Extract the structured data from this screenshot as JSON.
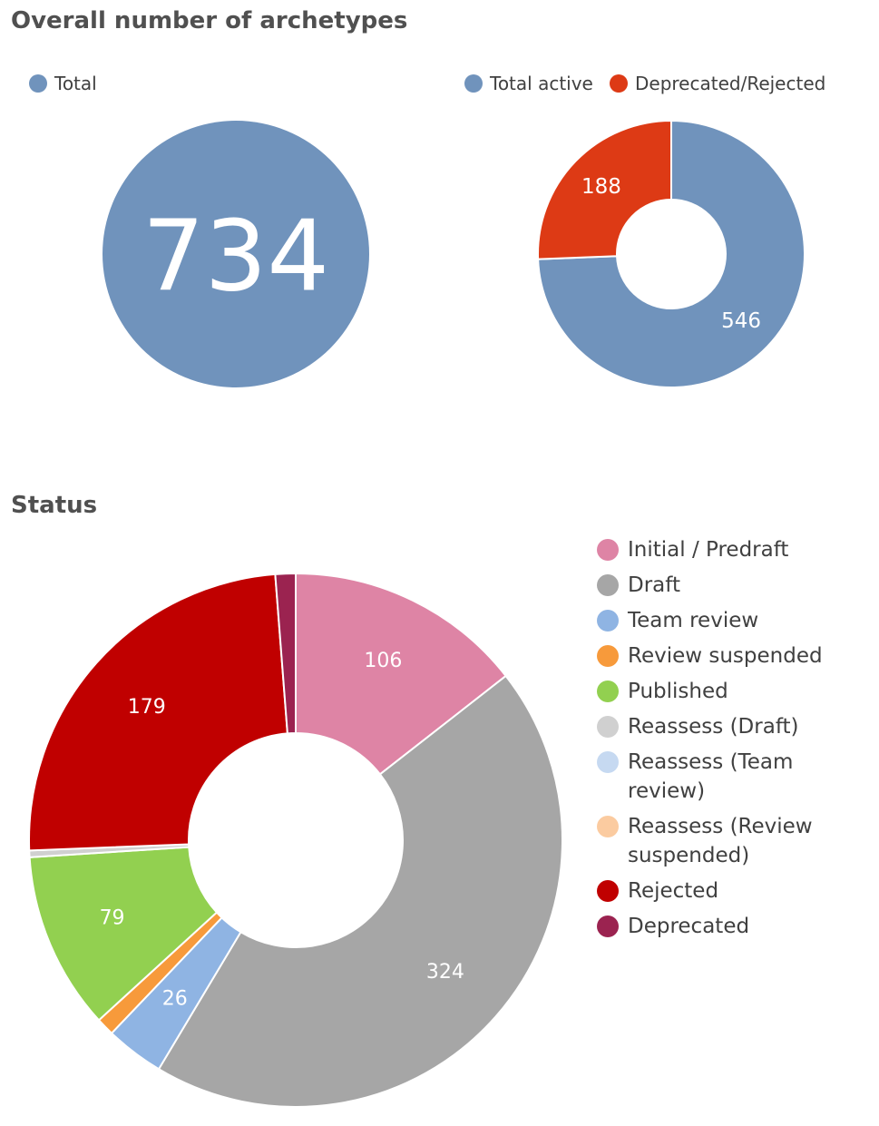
{
  "titles": {
    "overall": "Overall number of archetypes",
    "status": "Status"
  },
  "chart_data": [
    {
      "type": "pie",
      "title": "",
      "legend": "top-left",
      "series": [
        {
          "name": "Total",
          "value": 734,
          "color": "#7093bc"
        }
      ],
      "center_label": "734"
    },
    {
      "type": "pie",
      "title": "",
      "legend": "top",
      "donut": true,
      "series": [
        {
          "name": "Total active",
          "value": 546,
          "color": "#7093bc"
        },
        {
          "name": "Deprecated/Rejected",
          "value": 188,
          "color": "#dd3a15"
        }
      ]
    },
    {
      "type": "pie",
      "title": "Status",
      "legend": "right",
      "donut": true,
      "series": [
        {
          "name": "Initial / Predraft",
          "value": 106,
          "color": "#de84a5",
          "show_label": true
        },
        {
          "name": "Draft",
          "value": 324,
          "color": "#a6a6a6",
          "show_label": true
        },
        {
          "name": "Team review",
          "value": 26,
          "color": "#8fb4e3",
          "show_label": true
        },
        {
          "name": "Review suspended",
          "value": 8,
          "color": "#f79a3b",
          "show_label": false
        },
        {
          "name": "Published",
          "value": 79,
          "color": "#92d050",
          "show_label": true
        },
        {
          "name": "Reassess (Draft)",
          "value": 3,
          "color": "#d0d0d0",
          "show_label": false
        },
        {
          "name": "Reassess (Team review)",
          "value": 0,
          "color": "#c6d9f1",
          "show_label": false
        },
        {
          "name": "Reassess (Review suspended)",
          "value": 0,
          "color": "#fbcba0",
          "show_label": false
        },
        {
          "name": "Rejected",
          "value": 179,
          "color": "#c00000",
          "show_label": true
        },
        {
          "name": "Deprecated",
          "value": 9,
          "color": "#9b2350",
          "show_label": false
        }
      ]
    }
  ]
}
